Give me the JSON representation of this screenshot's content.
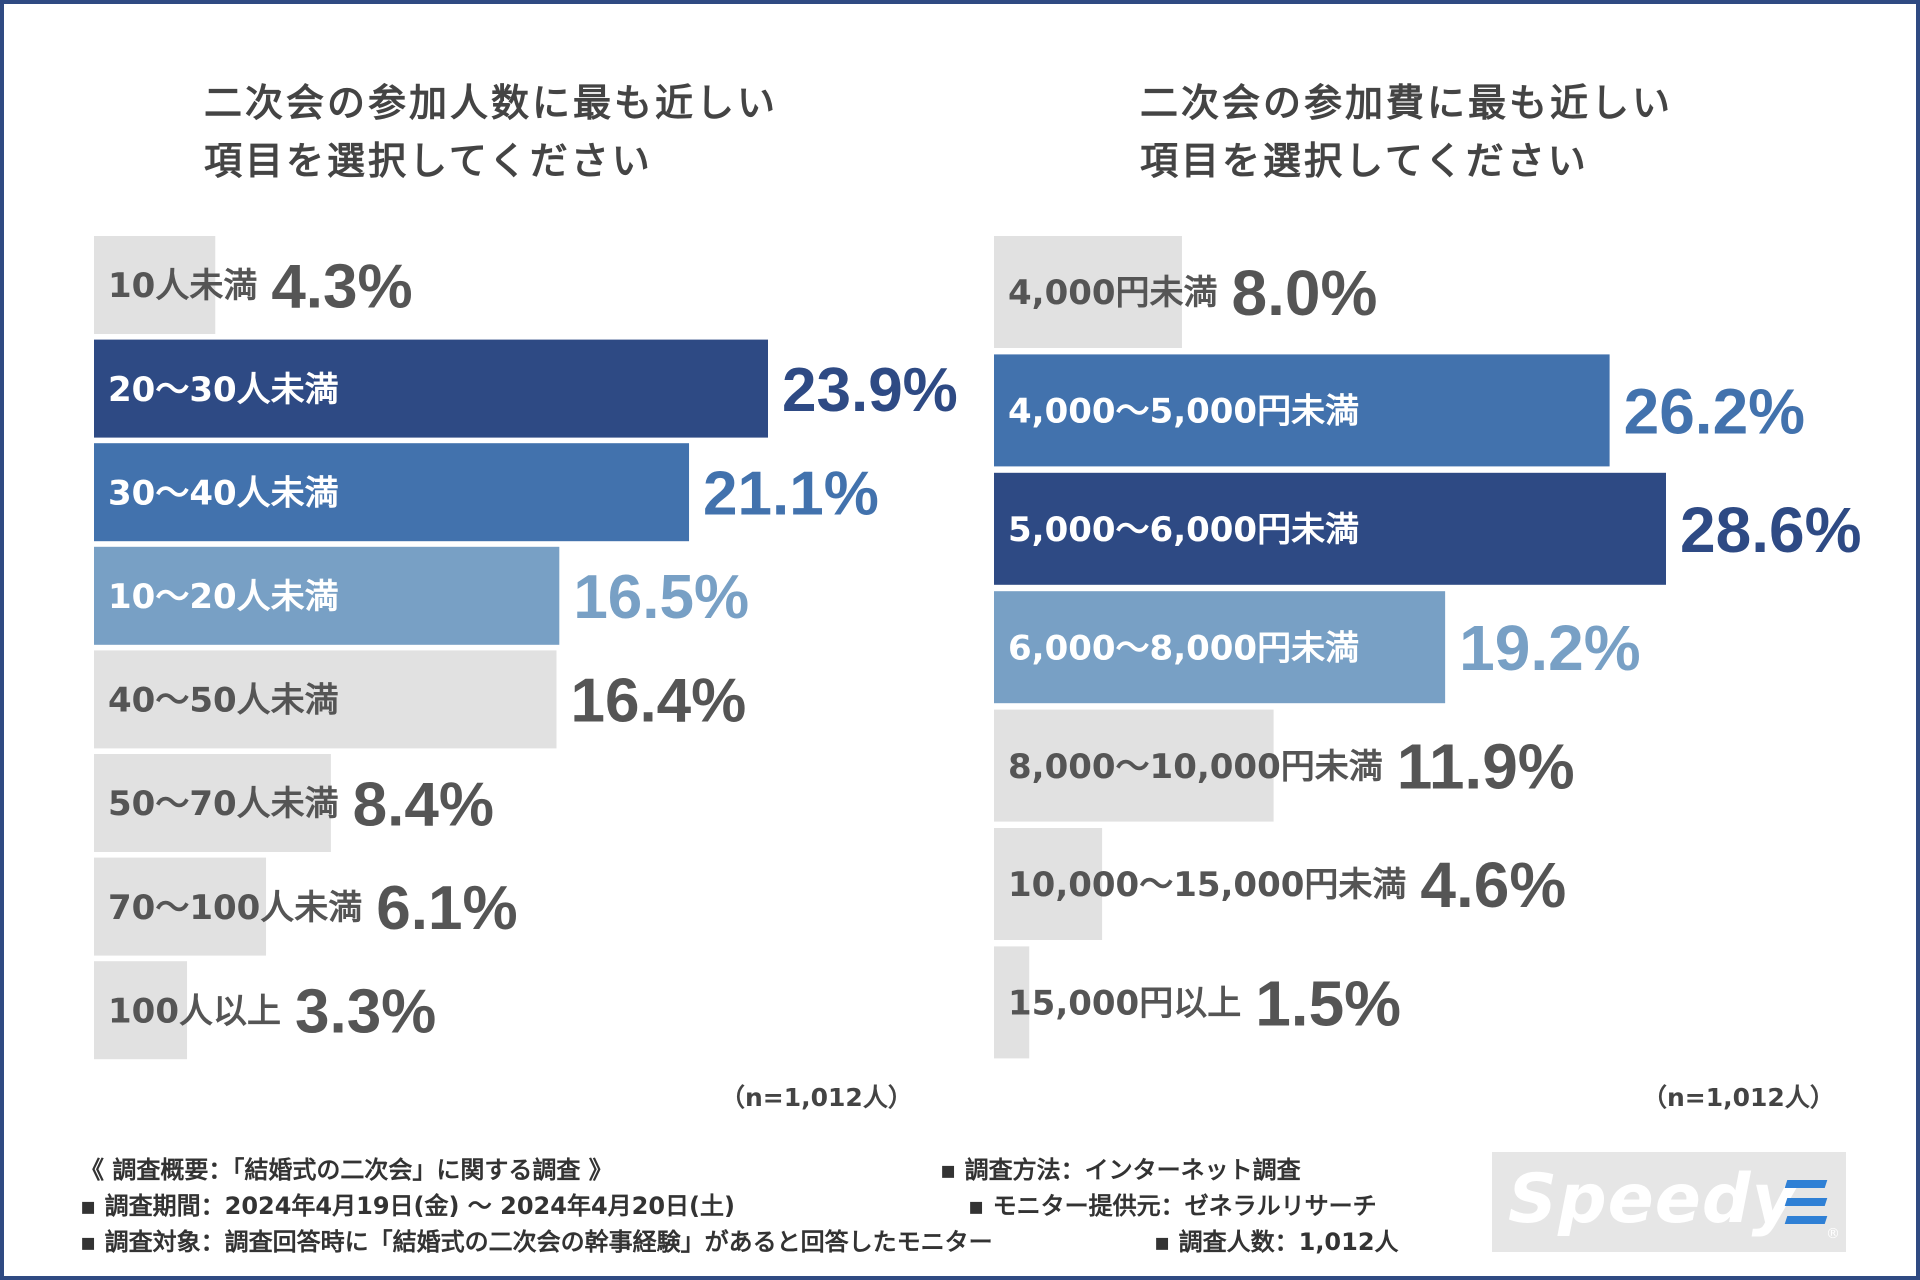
{
  "colors": {
    "frame": "#2f4a82",
    "dark_navy": "#2e4a84",
    "mid_blue": "#4272ad",
    "light_blue": "#78a0c5",
    "gray_bar": "#e1e1e1",
    "gray_text": "#555555",
    "white": "#ffffff"
  },
  "chart_data": [
    {
      "type": "bar",
      "orientation": "horizontal",
      "title_lines": [
        "二次会の参加人数に最も近しい",
        "項目を選択してください"
      ],
      "categories": [
        "10人未満",
        "20～30人未満",
        "30～40人未満",
        "10～20人未満",
        "40～50人未満",
        "50～70人未満",
        "70～100人未満",
        "100人以上"
      ],
      "values": [
        4.3,
        23.9,
        21.1,
        16.5,
        16.4,
        8.4,
        6.1,
        3.3
      ],
      "value_labels": [
        "4.3%",
        "23.9%",
        "21.1%",
        "16.5%",
        "16.4%",
        "8.4%",
        "6.1%",
        "3.3%"
      ],
      "highlight": [
        "gray",
        "dark",
        "mid",
        "light",
        "gray",
        "gray",
        "gray",
        "gray"
      ],
      "unit": "%",
      "xlim": [
        0,
        23.9
      ],
      "n_label": "（n=1,012人）"
    },
    {
      "type": "bar",
      "orientation": "horizontal",
      "title_lines": [
        "二次会の参加費に最も近しい",
        "項目を選択してください"
      ],
      "categories": [
        "4,000円未満",
        "4,000～5,000円未満",
        "5,000～6,000円未満",
        "6,000～8,000円未満",
        "8,000～10,000円未満",
        "10,000～15,000円未満",
        "15,000円以上"
      ],
      "values": [
        8.0,
        26.2,
        28.6,
        19.2,
        11.9,
        4.6,
        1.5
      ],
      "value_labels": [
        "8.0%",
        "26.2%",
        "28.6%",
        "19.2%",
        "11.9%",
        "4.6%",
        "1.5%"
      ],
      "highlight": [
        "gray",
        "mid",
        "dark",
        "light",
        "gray",
        "gray",
        "gray"
      ],
      "unit": "%",
      "xlim": [
        0,
        28.6
      ],
      "n_label": "（n=1,012人）"
    }
  ],
  "footer": {
    "summary": "《 調査概要：「結婚式の二次会」に関する調査 》",
    "method": "▪ 調査方法：インターネット調査",
    "period": "▪ 調査期間：2024年4月19日(金) ～ 2024年4月20日(土)",
    "provider": "▪ モニター提供元：ゼネラルリサーチ",
    "target": "▪ 調査対象：調査回答時に「結婚式の二次会の幹事経験」があると回答したモニター",
    "count": "▪ 調査人数：1,012人"
  },
  "logo": {
    "text": "Speedy",
    "mark": "registered",
    "registered_symbol": "®"
  }
}
